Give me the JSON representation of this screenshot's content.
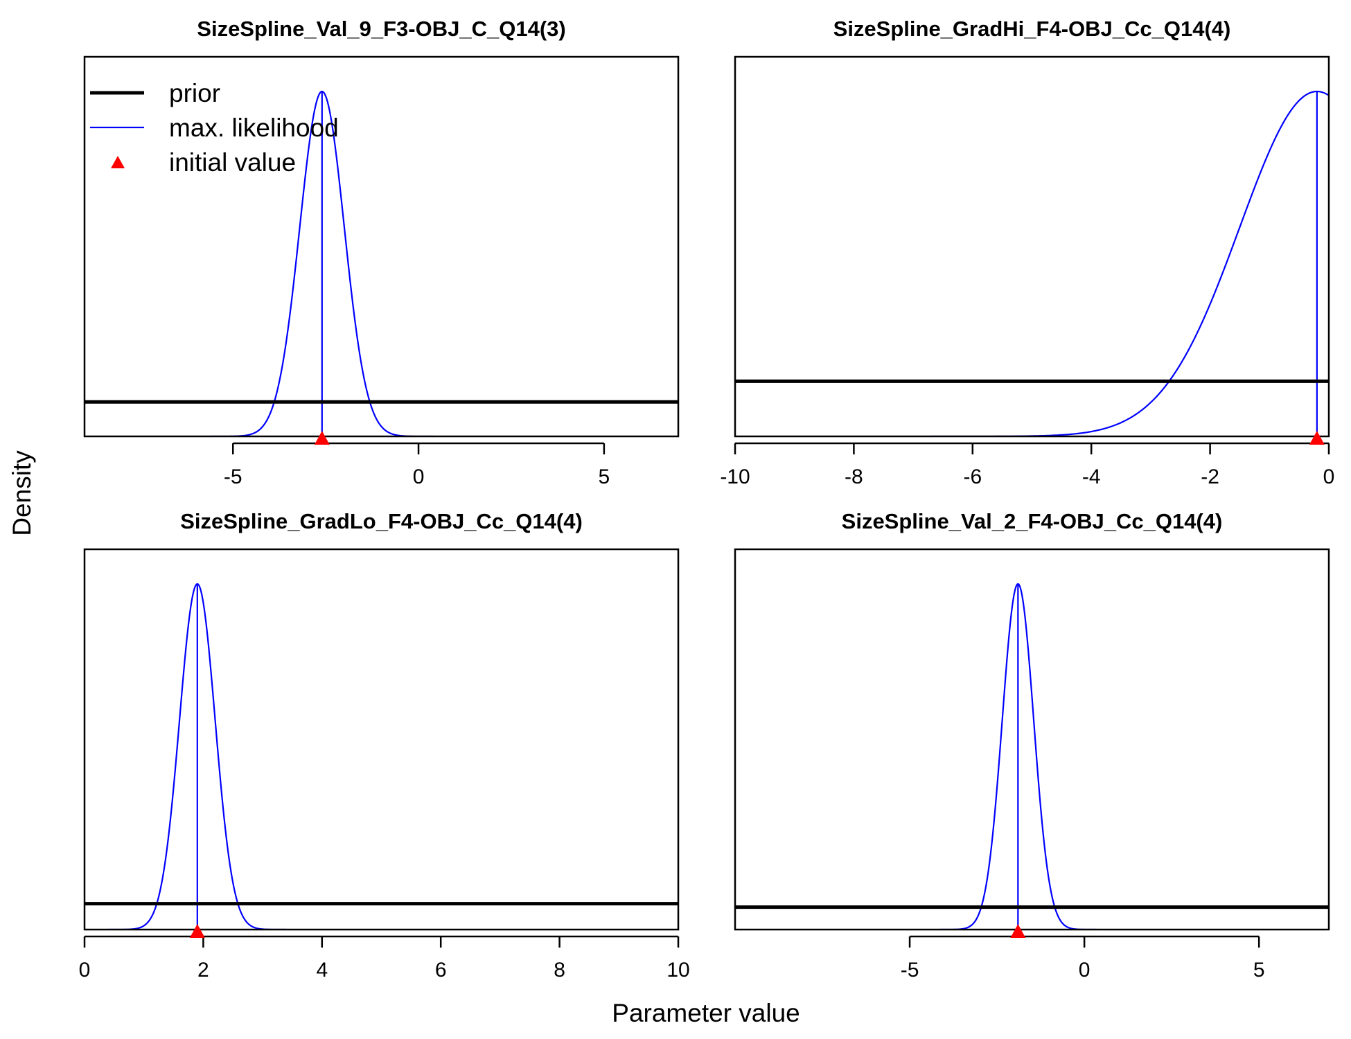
{
  "chart_data": {
    "type": "line",
    "xlabel": "Parameter value",
    "ylabel": "Density",
    "legend": {
      "position": "top-left of first panel",
      "entries": [
        {
          "label": "prior",
          "symbol": "line",
          "color": "#000000"
        },
        {
          "label": "max. likelihood",
          "symbol": "line",
          "color": "#0000ff"
        },
        {
          "label": "initial value",
          "symbol": "triangle",
          "color": "#ff0000"
        }
      ]
    },
    "panels": [
      {
        "title": "SizeSpline_Val_9_F3-OBJ_C_Q14(3)",
        "xlim": [
          -9,
          7
        ],
        "xticks": [
          -5,
          0,
          5
        ],
        "x_tick_labels": [
          "-5",
          "0",
          "5"
        ],
        "prior_level": 0.1,
        "max_likelihood": {
          "mean": -2.6,
          "sd": 0.6
        },
        "initial_value": -2.6
      },
      {
        "title": "SizeSpline_GradHi_F4-OBJ_Cc_Q14(4)",
        "xlim": [
          -10,
          0
        ],
        "xticks": [
          -10,
          -8,
          -6,
          -4,
          -2,
          0
        ],
        "x_tick_labels": [
          "-10",
          "-8",
          "-6",
          "-4",
          "-2",
          "0"
        ],
        "prior_level": 0.16,
        "max_likelihood": {
          "mean": -0.2,
          "sd": 1.3
        },
        "initial_value": -0.2
      },
      {
        "title": "SizeSpline_GradLo_F4-OBJ_Cc_Q14(4)",
        "xlim": [
          0,
          10
        ],
        "xticks": [
          0,
          2,
          4,
          6,
          8,
          10
        ],
        "x_tick_labels": [
          "0",
          "2",
          "4",
          "6",
          "8",
          "10"
        ],
        "prior_level": 0.075,
        "max_likelihood": {
          "mean": 1.9,
          "sd": 0.3
        },
        "initial_value": 1.9
      },
      {
        "title": "SizeSpline_Val_2_F4-OBJ_Cc_Q14(4)",
        "xlim": [
          -10,
          7
        ],
        "xticks": [
          -5,
          0,
          5
        ],
        "x_tick_labels": [
          "-5",
          "0",
          "5"
        ],
        "prior_level": 0.065,
        "max_likelihood": {
          "mean": -1.9,
          "sd": 0.45
        },
        "initial_value": -1.9
      }
    ],
    "colors": {
      "prior": "#000000",
      "max_likelihood": "#0000ff",
      "initial_value": "#ff0000"
    }
  }
}
